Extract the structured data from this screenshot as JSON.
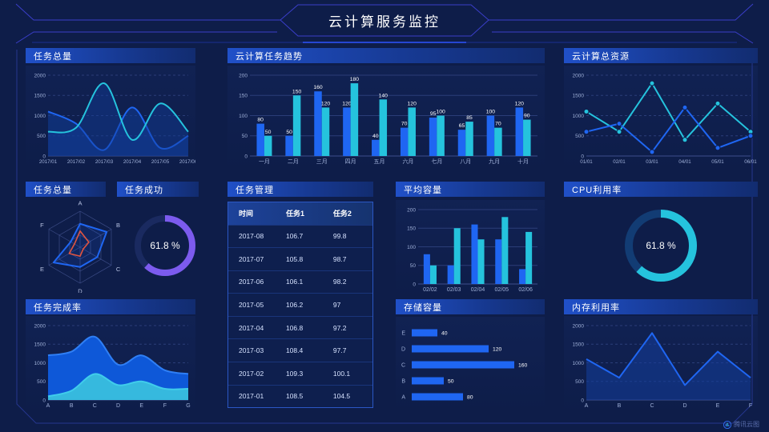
{
  "page": {
    "title": "云计算服务监控",
    "watermark": "腾讯云图"
  },
  "colors": {
    "blue": "#1f66f2",
    "cyan": "#25c3dd",
    "purple": "#7c5bee",
    "red": "#e05440",
    "grid": "#2b3d78",
    "axisline": "#3d4f8c",
    "axis_text": "#9fb0d8",
    "bar_label": "#ffffff"
  },
  "panels": {
    "tasks_total": "任务总量",
    "trend": "云计算任务趋势",
    "resources": "云计算总资源",
    "radar": "任务总量",
    "success": "任务成功",
    "table": "任务管理",
    "avg": "平均容量",
    "cpu": "CPU利用率",
    "completion": "任务完成率",
    "storage": "存储容量",
    "memory": "内存利用率"
  },
  "chart_data": {
    "tasks_total": {
      "type": "line",
      "title": "任务总量",
      "smooth": true,
      "dashed": true,
      "x": [
        "2017/01",
        "2017/02",
        "2017/03",
        "2017/04",
        "2017/05",
        "2017/06"
      ],
      "yticks": [
        0,
        500,
        1000,
        1500,
        2000
      ],
      "ylim": [
        0,
        2000
      ],
      "xsize": 6.2,
      "series": [
        {
          "name": "series-blue",
          "color": "blue",
          "values": [
            1100,
            800,
            150,
            1200,
            200,
            500
          ],
          "area": true,
          "areaColor": "rgba(17,60,152,0.55)"
        },
        {
          "name": "series-cyan",
          "color": "cyan",
          "values": [
            600,
            700,
            1800,
            400,
            1300,
            600
          ],
          "area": true,
          "areaColor": "rgba(17,60,152,0.45)"
        }
      ]
    },
    "trend": {
      "type": "bar",
      "title": "云计算任务趋势",
      "labels": true,
      "categories": [
        "一月",
        "二月",
        "三月",
        "四月",
        "五月",
        "六月",
        "七月",
        "八月",
        "九月",
        "十月"
      ],
      "yticks": [
        0,
        50,
        100,
        150,
        200
      ],
      "ylim": [
        0,
        200
      ],
      "series": [
        {
          "name": "任务1",
          "color": "blue",
          "values": [
            80,
            50,
            160,
            120,
            40,
            70,
            95,
            65,
            100,
            120
          ]
        },
        {
          "name": "任务2",
          "color": "cyan",
          "values": [
            50,
            150,
            120,
            180,
            140,
            120,
            100,
            85,
            70,
            90
          ]
        }
      ]
    },
    "resources": {
      "type": "line",
      "title": "云计算总资源",
      "smooth": false,
      "markers": true,
      "dashed": true,
      "x": [
        "01/01",
        "02/01",
        "03/01",
        "04/01",
        "05/01",
        "06/01"
      ],
      "yticks": [
        0,
        500,
        1000,
        1500,
        2000
      ],
      "ylim": [
        0,
        2000
      ],
      "xsize": 6.2,
      "series": [
        {
          "name": "series-cyan",
          "color": "cyan",
          "values": [
            1100,
            600,
            1800,
            400,
            1300,
            600
          ]
        },
        {
          "name": "series-blue",
          "color": "blue",
          "values": [
            600,
            800,
            100,
            1200,
            200,
            500
          ]
        }
      ]
    },
    "radar": {
      "type": "radar",
      "title": "任务总量",
      "indicators": [
        "A",
        "B",
        "C",
        "D",
        "E",
        "F"
      ],
      "max": 100,
      "series": [
        {
          "name": "series-blue",
          "color": "blue",
          "width": 2,
          "fill": "rgba(31,102,242,0.14)",
          "values": [
            65,
            85,
            55,
            55,
            85,
            30
          ]
        },
        {
          "name": "series-red",
          "color": "red",
          "width": 1.6,
          "fill": "none",
          "values": [
            45,
            28,
            10,
            25,
            35,
            18
          ]
        }
      ]
    },
    "success": {
      "type": "donut",
      "title": "任务成功",
      "value": 61.8,
      "label": "61.8 %",
      "color": "purple",
      "track": "#1a2a60",
      "radius": 34,
      "thickness": 8
    },
    "task_table": {
      "type": "table",
      "title": "任务管理",
      "headers": [
        "时间",
        "任务1",
        "任务2"
      ],
      "rows": [
        [
          "2017-08",
          "106.7",
          "99.8"
        ],
        [
          "2017-07",
          "105.8",
          "98.7"
        ],
        [
          "2017-06",
          "106.1",
          "98.2"
        ],
        [
          "2017-05",
          "106.2",
          "97"
        ],
        [
          "2017-04",
          "106.8",
          "97.2"
        ],
        [
          "2017-03",
          "108.4",
          "97.7"
        ],
        [
          "2017-02",
          "109.3",
          "100.1"
        ],
        [
          "2017-01",
          "108.5",
          "104.5"
        ]
      ]
    },
    "avg": {
      "type": "bar",
      "title": "平均容量",
      "labels": false,
      "categories": [
        "02/02",
        "02/03",
        "02/04",
        "02/05",
        "02/06"
      ],
      "yticks": [
        0,
        50,
        100,
        150,
        200
      ],
      "ylim": [
        0,
        200
      ],
      "series": [
        {
          "name": "series-blue",
          "color": "blue",
          "values": [
            80,
            50,
            160,
            120,
            40
          ]
        },
        {
          "name": "series-cyan",
          "color": "cyan",
          "values": [
            50,
            150,
            120,
            180,
            140
          ]
        }
      ]
    },
    "cpu": {
      "type": "donut",
      "title": "CPU利用率",
      "value": 61.8,
      "label": "61.8 %",
      "color": "cyan",
      "track": "#123c74",
      "radius": 40,
      "thickness": 10
    },
    "completion": {
      "type": "line",
      "title": "任务完成率",
      "smooth": true,
      "dashed": true,
      "x": [
        "A",
        "B",
        "C",
        "D",
        "E",
        "F",
        "G"
      ],
      "yticks": [
        0,
        500,
        1000,
        1500,
        2000
      ],
      "ylim": [
        0,
        2000
      ],
      "series": [
        {
          "name": "series-blue",
          "color": "#2f7ff5",
          "values": [
            1200,
            1300,
            1700,
            950,
            1200,
            800,
            700
          ],
          "area": true,
          "areaColor": "#0e58d8"
        },
        {
          "name": "series-cyan",
          "color": "#40cdeb",
          "values": [
            100,
            250,
            700,
            400,
            500,
            300,
            300
          ],
          "area": true,
          "areaColor": "#36b9de"
        }
      ]
    },
    "storage": {
      "type": "hbar",
      "title": "存储容量",
      "categories": [
        "E",
        "D",
        "C",
        "B",
        "A"
      ],
      "values": [
        40,
        120,
        160,
        50,
        80
      ],
      "xmax": 170,
      "color": "blue"
    },
    "memory": {
      "type": "line",
      "title": "内存利用率",
      "smooth": false,
      "dashed": true,
      "x": [
        "A",
        "B",
        "C",
        "D",
        "E",
        "F"
      ],
      "yticks": [
        0,
        500,
        1000,
        1500,
        2000
      ],
      "ylim": [
        0,
        2000
      ],
      "series": [
        {
          "name": "series-blue",
          "color": "blue",
          "values": [
            1100,
            600,
            1800,
            400,
            1300,
            600
          ],
          "area": true,
          "areaColor": "rgba(20,62,158,0.55)"
        }
      ]
    }
  }
}
